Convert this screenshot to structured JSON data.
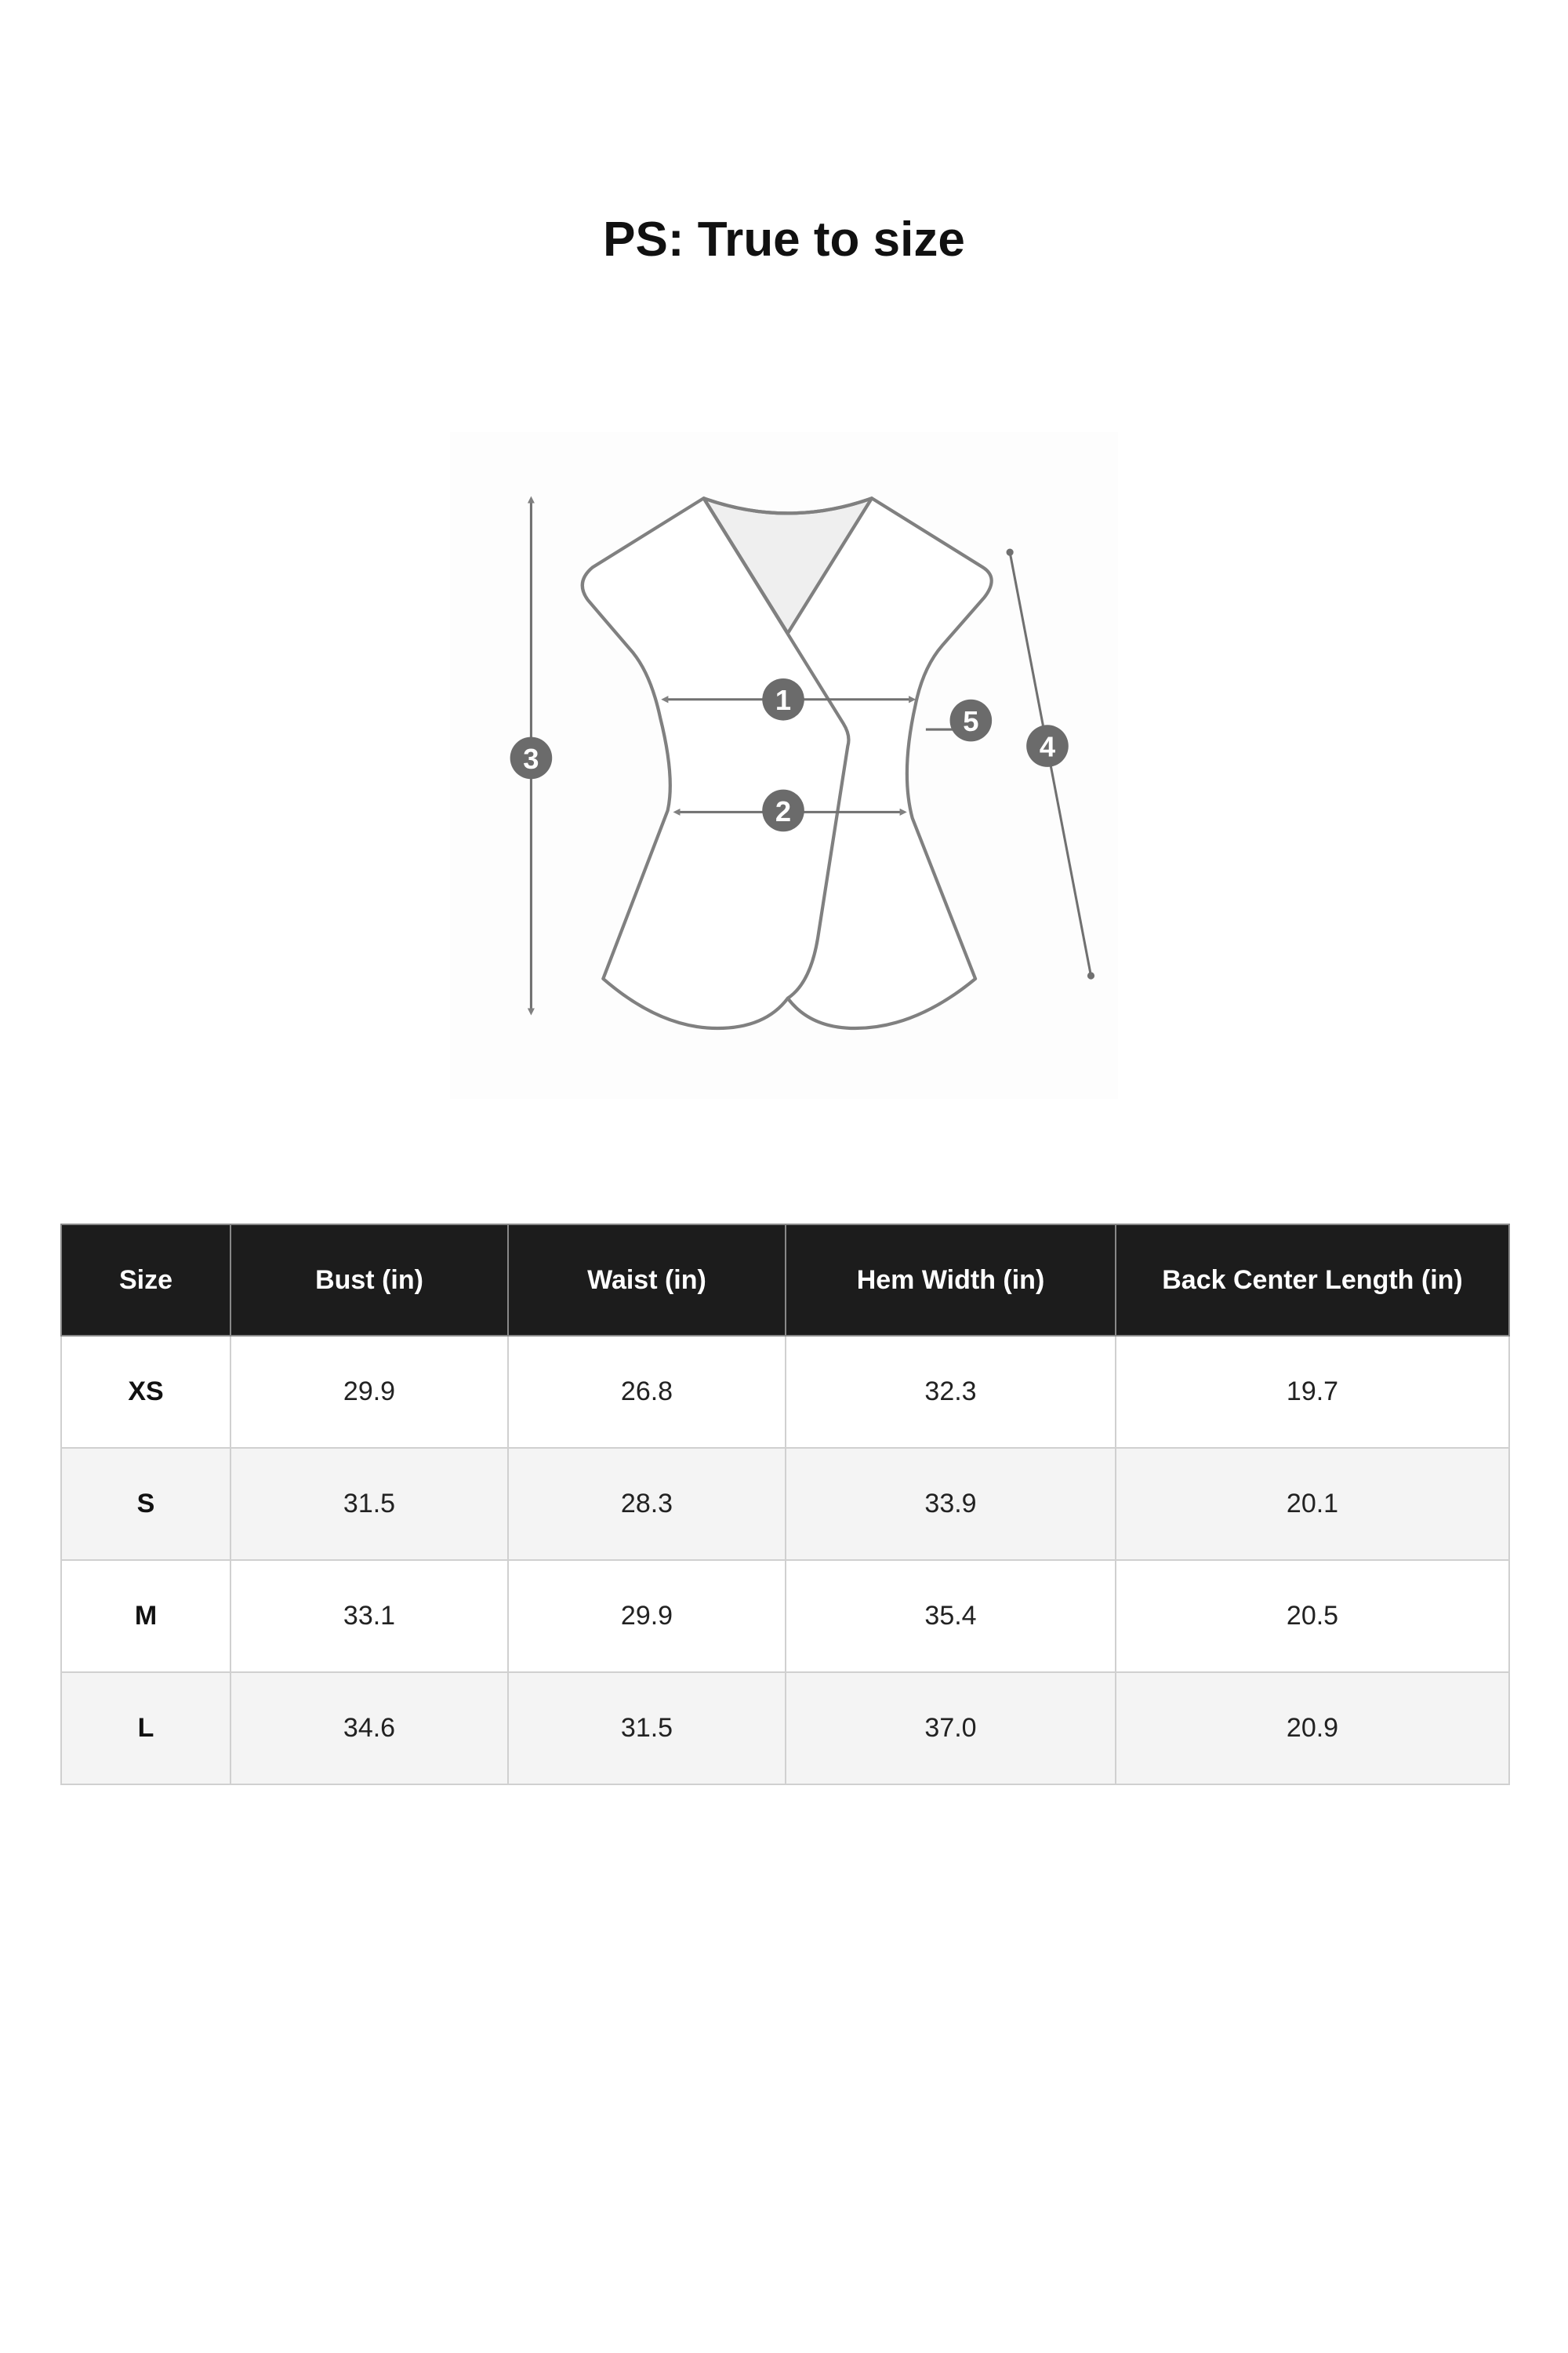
{
  "title": "PS: True to size",
  "diagram": {
    "markers": [
      "1",
      "2",
      "3",
      "4",
      "5"
    ],
    "line_color": "#808080",
    "marker_color": "#6b6b6b"
  },
  "table": {
    "headers": [
      "Size",
      "Bust (in)",
      "Waist (in)",
      "Hem Width (in)",
      "Back Center Length (in)"
    ],
    "rows": [
      [
        "XS",
        "29.9",
        "26.8",
        "32.3",
        "19.7"
      ],
      [
        "S",
        "31.5",
        "28.3",
        "33.9",
        "20.1"
      ],
      [
        "M",
        "33.1",
        "29.9",
        "35.4",
        "20.5"
      ],
      [
        "L",
        "34.6",
        "31.5",
        "37.0",
        "20.9"
      ]
    ],
    "header_bg": "#1c1c1c",
    "alt_row_bg": "#f4f4f4"
  }
}
